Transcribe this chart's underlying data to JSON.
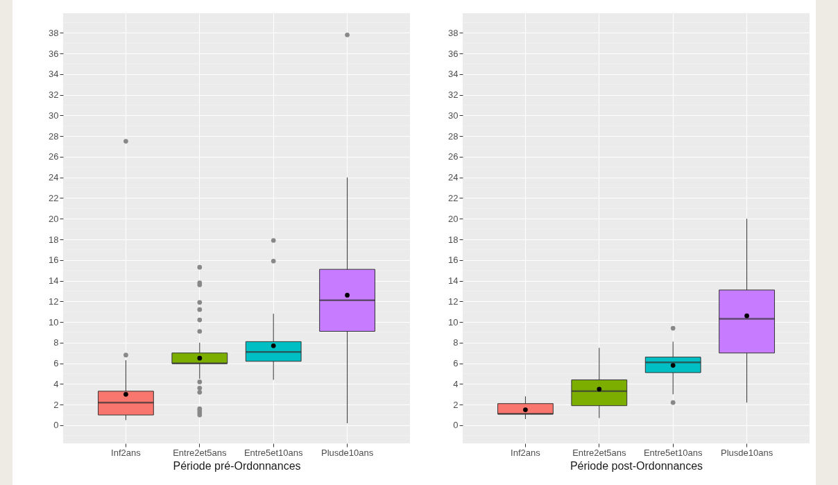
{
  "chart_data": [
    {
      "type": "box",
      "xlabel": "Période pré-Ordonnances",
      "categories": [
        "Inf2ans",
        "Entre2et5ans",
        "Entre5et10ans",
        "Plusde10ans"
      ],
      "colors": [
        "#f8766d",
        "#7cae00",
        "#00bfc4",
        "#c77cff"
      ],
      "ylim": [
        -1.75,
        39.9
      ],
      "yticks": [
        0,
        2,
        4,
        6,
        8,
        10,
        12,
        14,
        16,
        18,
        20,
        22,
        24,
        26,
        28,
        30,
        32,
        34,
        36,
        38
      ],
      "grid": true,
      "legend": false,
      "boxes": [
        {
          "low": 0.5,
          "q1": 1,
          "median": 2.2,
          "q3": 3.3,
          "high": 6.3,
          "mean": 3,
          "outliers": [
            6.8,
            27.5
          ]
        },
        {
          "low": 4.5,
          "q1": 6,
          "median": 6,
          "q3": 7,
          "high": 8,
          "mean": 6.5,
          "outliers": [
            15.3,
            13.8,
            13.6,
            11.9,
            11.2,
            10.2,
            9.1,
            4.2,
            3.6,
            3.2,
            1.6,
            1.4,
            1.2,
            1.0
          ]
        },
        {
          "low": 4.4,
          "q1": 6.2,
          "median": 7.1,
          "q3": 8.1,
          "high": 10.8,
          "mean": 7.7,
          "outliers": [
            15.9,
            17.9
          ]
        },
        {
          "low": 0.2,
          "q1": 9.1,
          "median": 12.1,
          "q3": 15.1,
          "high": 24,
          "mean": 12.6,
          "outliers": [
            37.8
          ]
        }
      ]
    },
    {
      "type": "box",
      "xlabel": "Période post-Ordonnances",
      "categories": [
        "Inf2ans",
        "Entre2et5ans",
        "Entre5et10ans",
        "Plusde10ans"
      ],
      "colors": [
        "#f8766d",
        "#7cae00",
        "#00bfc4",
        "#c77cff"
      ],
      "ylim": [
        -1.75,
        39.9
      ],
      "yticks": [
        0,
        2,
        4,
        6,
        8,
        10,
        12,
        14,
        16,
        18,
        20,
        22,
        24,
        26,
        28,
        30,
        32,
        34,
        36,
        38
      ],
      "grid": true,
      "legend": false,
      "boxes": [
        {
          "low": 0.6,
          "q1": 1.1,
          "median": 1.1,
          "q3": 2.1,
          "high": 2.8,
          "mean": 1.5
        },
        {
          "low": 0.7,
          "q1": 1.9,
          "median": 3.3,
          "q3": 4.4,
          "high": 7.5,
          "mean": 3.5
        },
        {
          "low": 3.0,
          "q1": 5.1,
          "median": 6.1,
          "q3": 6.6,
          "high": 8.1,
          "mean": 5.8,
          "outliers": [
            9.4,
            2.2
          ]
        },
        {
          "low": 2.2,
          "q1": 7,
          "median": 10.3,
          "q3": 13.1,
          "high": 20,
          "mean": 10.6
        }
      ]
    }
  ]
}
